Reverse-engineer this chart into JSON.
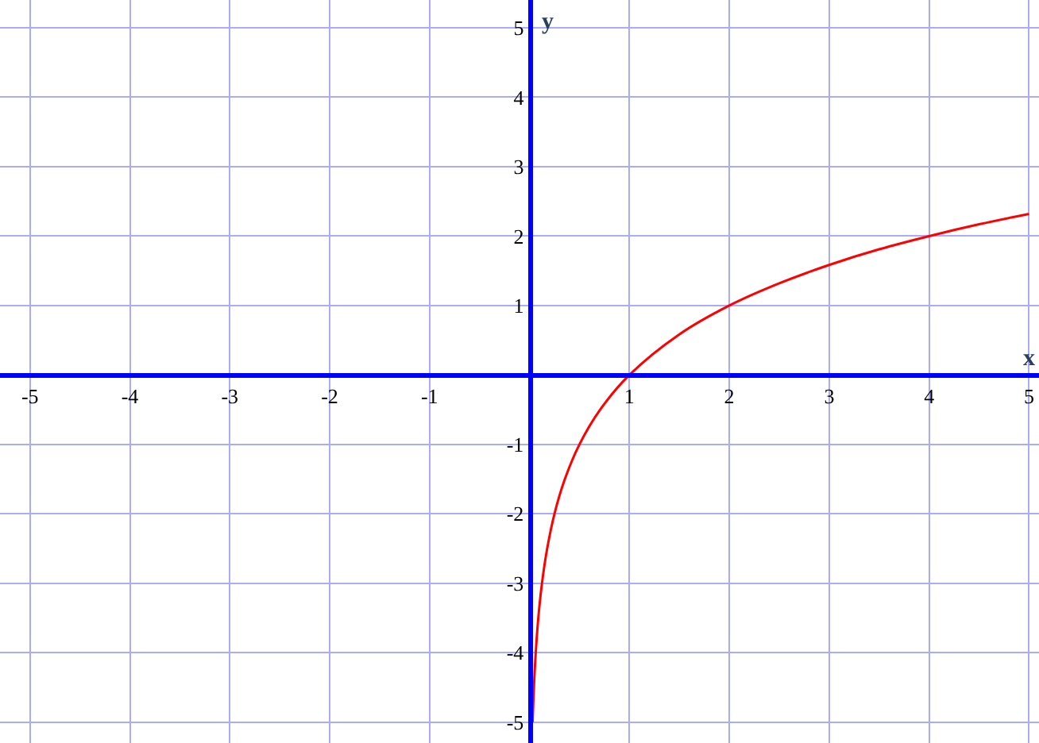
{
  "chart_data": {
    "type": "line",
    "xlabel": "x",
    "ylabel": "y",
    "xlim": [
      -5.3,
      5.1
    ],
    "ylim": [
      -5.3,
      5.4
    ],
    "xticks": [
      -5,
      -4,
      -3,
      -2,
      -1,
      1,
      2,
      3,
      4,
      5
    ],
    "yticks": [
      -5,
      -4,
      -3,
      -2,
      -1,
      1,
      2,
      3,
      4,
      5
    ],
    "grid": true,
    "legend": false,
    "marker": "none",
    "line_style": "solid",
    "series": [
      {
        "color": "#ff0000",
        "x": [
          0.03125,
          0.0442,
          0.0625,
          0.088,
          0.125,
          0.177,
          0.25,
          0.354,
          0.5,
          0.707,
          1,
          1.5,
          2,
          2.5,
          3,
          3.5,
          4,
          4.5,
          5
        ],
        "values": [
          -5,
          -4.5,
          -4,
          -3.5,
          -3,
          -2.5,
          -2,
          -1.5,
          -1,
          -0.5,
          0,
          0.585,
          1,
          1.32,
          1.585,
          1.81,
          2,
          2.17,
          2.32
        ]
      }
    ]
  }
}
